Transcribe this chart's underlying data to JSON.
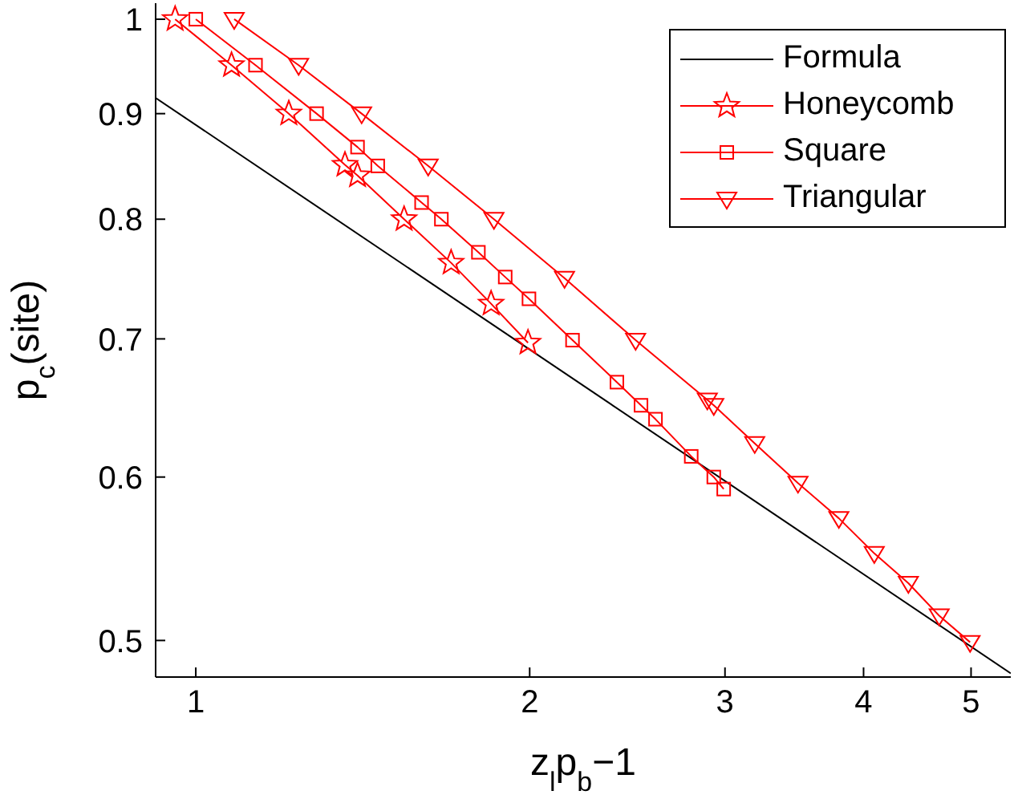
{
  "chart_data": {
    "type": "line",
    "xlabel": "z$_{l}$p$_{b}$−1",
    "ylabel": "p$_{c}$(site)",
    "log": "xy",
    "xlim": [
      0.92,
      5.43
    ],
    "ylim": [
      0.48,
      1.018
    ],
    "xticks": [
      1,
      2,
      3,
      4,
      5
    ],
    "yticks": [
      0.5,
      0.6,
      0.7,
      0.8,
      0.9,
      1
    ],
    "grid": false,
    "legend": "top right",
    "line_style": "solid",
    "series": [
      {
        "name": "Formula",
        "color": "#000000",
        "marker": "none",
        "x": [
          0.92,
          5.43
        ],
        "values": [
          0.916,
          0.482
        ]
      },
      {
        "name": "Honeycomb",
        "color": "#ff0000",
        "marker": "star",
        "x": [
          0.958,
          1.077,
          1.213,
          1.363,
          1.399,
          1.541,
          1.699,
          1.846,
          1.993
        ],
        "values": [
          1.0,
          0.95,
          0.9,
          0.85,
          0.84,
          0.8,
          0.762,
          0.728,
          0.697
        ]
      },
      {
        "name": "Square",
        "color": "#ff0000",
        "marker": "square",
        "x": [
          1.0,
          1.132,
          1.285,
          1.399,
          1.459,
          1.598,
          1.665,
          1.798,
          1.901,
          1.997,
          2.186,
          2.397,
          2.52,
          2.597,
          2.797,
          2.931,
          2.992
        ],
        "values": [
          1.0,
          0.95,
          0.9,
          0.867,
          0.849,
          0.815,
          0.8,
          0.771,
          0.75,
          0.732,
          0.699,
          0.667,
          0.65,
          0.64,
          0.614,
          0.6,
          0.592
        ]
      },
      {
        "name": "Triangular",
        "color": "#ff0000",
        "marker": "triangle",
        "x": [
          1.083,
          1.238,
          1.411,
          1.62,
          1.857,
          2.15,
          2.492,
          2.892,
          2.931,
          3.191,
          3.491,
          3.8,
          4.09,
          4.39,
          4.68,
          4.99
        ],
        "values": [
          1.0,
          0.95,
          0.9,
          0.849,
          0.8,
          0.749,
          0.699,
          0.654,
          0.65,
          0.623,
          0.596,
          0.573,
          0.551,
          0.533,
          0.514,
          0.499
        ]
      }
    ]
  }
}
